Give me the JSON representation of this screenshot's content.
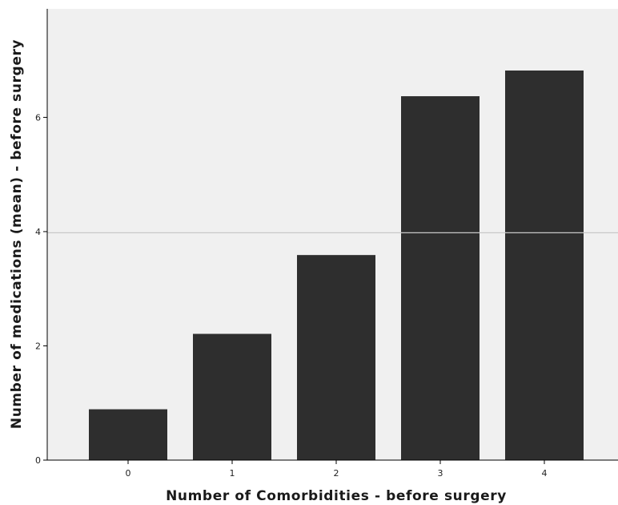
{
  "chart_data": {
    "type": "bar",
    "title": "",
    "xlabel": "Number of Comorbidities - before surgery",
    "ylabel": "Number of medications (mean) - before surgery",
    "categories": [
      "0",
      "1",
      "2",
      "3",
      "4"
    ],
    "values": [
      0.89,
      2.21,
      3.59,
      6.37,
      6.82
    ],
    "yticks": [
      0,
      2,
      4,
      6
    ],
    "ytick_labels": [
      "0",
      "2",
      "4",
      "6"
    ],
    "ylim": [
      0,
      7.9
    ],
    "reference_line": 3.98,
    "bar_color": "#2e2e2e",
    "plot_background": "#f0f0f0",
    "reference_line_color": "#c8c8c8",
    "grid": false,
    "legend": "none"
  }
}
